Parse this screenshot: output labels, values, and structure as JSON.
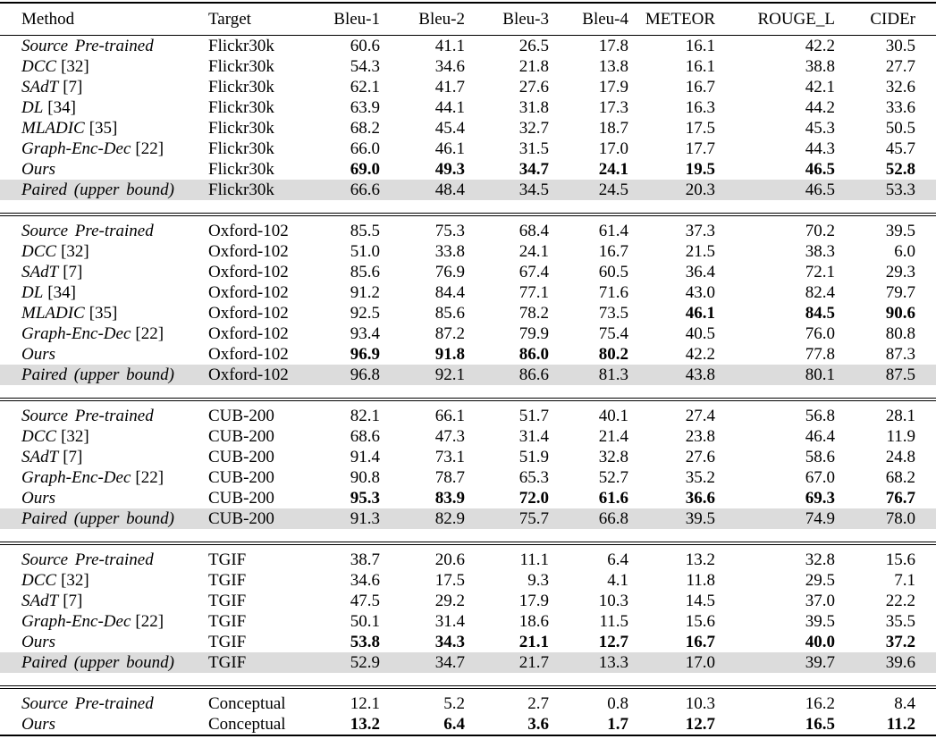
{
  "table": {
    "columns": [
      "Method",
      "Target",
      "Bleu-1",
      "Bleu-2",
      "Bleu-3",
      "Bleu-4",
      "METEOR",
      "ROUGE_L",
      "CIDEr"
    ],
    "shaded_row_color": "#dcdcdc",
    "blocks": [
      {
        "target_dataset": "Flickr30k",
        "rows": [
          {
            "method": "Source Pre-trained",
            "ref": "",
            "target": "Flickr30k",
            "values": [
              "60.6",
              "41.1",
              "26.5",
              "17.8",
              "16.1",
              "42.2",
              "30.5"
            ],
            "bold": [
              0,
              0,
              0,
              0,
              0,
              0,
              0
            ],
            "shaded": false
          },
          {
            "method": "DCC",
            "ref": "[32]",
            "target": "Flickr30k",
            "values": [
              "54.3",
              "34.6",
              "21.8",
              "13.8",
              "16.1",
              "38.8",
              "27.7"
            ],
            "bold": [
              0,
              0,
              0,
              0,
              0,
              0,
              0
            ],
            "shaded": false
          },
          {
            "method": "SAdT",
            "ref": "[7]",
            "target": "Flickr30k",
            "values": [
              "62.1",
              "41.7",
              "27.6",
              "17.9",
              "16.7",
              "42.1",
              "32.6"
            ],
            "bold": [
              0,
              0,
              0,
              0,
              0,
              0,
              0
            ],
            "shaded": false
          },
          {
            "method": "DL",
            "ref": "[34]",
            "target": "Flickr30k",
            "values": [
              "63.9",
              "44.1",
              "31.8",
              "17.3",
              "16.3",
              "44.2",
              "33.6"
            ],
            "bold": [
              0,
              0,
              0,
              0,
              0,
              0,
              0
            ],
            "shaded": false
          },
          {
            "method": "MLADIC",
            "ref": "[35]",
            "target": "Flickr30k",
            "values": [
              "68.2",
              "45.4",
              "32.7",
              "18.7",
              "17.5",
              "45.3",
              "50.5"
            ],
            "bold": [
              0,
              0,
              0,
              0,
              0,
              0,
              0
            ],
            "shaded": false
          },
          {
            "method": "Graph-Enc-Dec",
            "ref": "[22]",
            "target": "Flickr30k",
            "values": [
              "66.0",
              "46.1",
              "31.5",
              "17.0",
              "17.7",
              "44.3",
              "45.7"
            ],
            "bold": [
              0,
              0,
              0,
              0,
              0,
              0,
              0
            ],
            "shaded": false
          },
          {
            "method": "Ours",
            "ref": "",
            "target": "Flickr30k",
            "values": [
              "69.0",
              "49.3",
              "34.7",
              "24.1",
              "19.5",
              "46.5",
              "52.8"
            ],
            "bold": [
              1,
              1,
              1,
              1,
              1,
              1,
              1
            ],
            "shaded": false
          },
          {
            "method": "Paired (upper bound)",
            "ref": "",
            "target": "Flickr30k",
            "values": [
              "66.6",
              "48.4",
              "34.5",
              "24.5",
              "20.3",
              "46.5",
              "53.3"
            ],
            "bold": [
              0,
              0,
              0,
              0,
              0,
              0,
              0
            ],
            "shaded": true
          }
        ]
      },
      {
        "target_dataset": "Oxford-102",
        "rows": [
          {
            "method": "Source Pre-trained",
            "ref": "",
            "target": "Oxford-102",
            "values": [
              "85.5",
              "75.3",
              "68.4",
              "61.4",
              "37.3",
              "70.2",
              "39.5"
            ],
            "bold": [
              0,
              0,
              0,
              0,
              0,
              0,
              0
            ],
            "shaded": false
          },
          {
            "method": "DCC",
            "ref": "[32]",
            "target": "Oxford-102",
            "values": [
              "51.0",
              "33.8",
              "24.1",
              "16.7",
              "21.5",
              "38.3",
              "6.0"
            ],
            "bold": [
              0,
              0,
              0,
              0,
              0,
              0,
              0
            ],
            "shaded": false
          },
          {
            "method": "SAdT",
            "ref": "[7]",
            "target": "Oxford-102",
            "values": [
              "85.6",
              "76.9",
              "67.4",
              "60.5",
              "36.4",
              "72.1",
              "29.3"
            ],
            "bold": [
              0,
              0,
              0,
              0,
              0,
              0,
              0
            ],
            "shaded": false
          },
          {
            "method": "DL",
            "ref": "[34]",
            "target": "Oxford-102",
            "values": [
              "91.2",
              "84.4",
              "77.1",
              "71.6",
              "43.0",
              "82.4",
              "79.7"
            ],
            "bold": [
              0,
              0,
              0,
              0,
              0,
              0,
              0
            ],
            "shaded": false
          },
          {
            "method": "MLADIC",
            "ref": "[35]",
            "target": "Oxford-102",
            "values": [
              "92.5",
              "85.6",
              "78.2",
              "73.5",
              "46.1",
              "84.5",
              "90.6"
            ],
            "bold": [
              0,
              0,
              0,
              0,
              1,
              1,
              1
            ],
            "shaded": false
          },
          {
            "method": "Graph-Enc-Dec",
            "ref": "[22]",
            "target": "Oxford-102",
            "values": [
              "93.4",
              "87.2",
              "79.9",
              "75.4",
              "40.5",
              "76.0",
              "80.8"
            ],
            "bold": [
              0,
              0,
              0,
              0,
              0,
              0,
              0
            ],
            "shaded": false
          },
          {
            "method": "Ours",
            "ref": "",
            "target": "Oxford-102",
            "values": [
              "96.9",
              "91.8",
              "86.0",
              "80.2",
              "42.2",
              "77.8",
              "87.3"
            ],
            "bold": [
              1,
              1,
              1,
              1,
              0,
              0,
              0
            ],
            "shaded": false
          },
          {
            "method": "Paired (upper bound)",
            "ref": "",
            "target": "Oxford-102",
            "values": [
              "96.8",
              "92.1",
              "86.6",
              "81.3",
              "43.8",
              "80.1",
              "87.5"
            ],
            "bold": [
              0,
              0,
              0,
              0,
              0,
              0,
              0
            ],
            "shaded": true
          }
        ]
      },
      {
        "target_dataset": "CUB-200",
        "rows": [
          {
            "method": "Source Pre-trained",
            "ref": "",
            "target": "CUB-200",
            "values": [
              "82.1",
              "66.1",
              "51.7",
              "40.1",
              "27.4",
              "56.8",
              "28.1"
            ],
            "bold": [
              0,
              0,
              0,
              0,
              0,
              0,
              0
            ],
            "shaded": false
          },
          {
            "method": "DCC",
            "ref": "[32]",
            "target": "CUB-200",
            "values": [
              "68.6",
              "47.3",
              "31.4",
              "21.4",
              "23.8",
              "46.4",
              "11.9"
            ],
            "bold": [
              0,
              0,
              0,
              0,
              0,
              0,
              0
            ],
            "shaded": false
          },
          {
            "method": "SAdT",
            "ref": "[7]",
            "target": "CUB-200",
            "values": [
              "91.4",
              "73.1",
              "51.9",
              "32.8",
              "27.6",
              "58.6",
              "24.8"
            ],
            "bold": [
              0,
              0,
              0,
              0,
              0,
              0,
              0
            ],
            "shaded": false
          },
          {
            "method": "Graph-Enc-Dec",
            "ref": "[22]",
            "target": "CUB-200",
            "values": [
              "90.8",
              "78.7",
              "65.3",
              "52.7",
              "35.2",
              "67.0",
              "68.2"
            ],
            "bold": [
              0,
              0,
              0,
              0,
              0,
              0,
              0
            ],
            "shaded": false
          },
          {
            "method": "Ours",
            "ref": "",
            "target": "CUB-200",
            "values": [
              "95.3",
              "83.9",
              "72.0",
              "61.6",
              "36.6",
              "69.3",
              "76.7"
            ],
            "bold": [
              1,
              1,
              1,
              1,
              1,
              1,
              1
            ],
            "shaded": false
          },
          {
            "method": "Paired (upper bound)",
            "ref": "",
            "target": "CUB-200",
            "values": [
              "91.3",
              "82.9",
              "75.7",
              "66.8",
              "39.5",
              "74.9",
              "78.0"
            ],
            "bold": [
              0,
              0,
              0,
              0,
              0,
              0,
              0
            ],
            "shaded": true
          }
        ]
      },
      {
        "target_dataset": "TGIF",
        "rows": [
          {
            "method": "Source Pre-trained",
            "ref": "",
            "target": "TGIF",
            "values": [
              "38.7",
              "20.6",
              "11.1",
              "6.4",
              "13.2",
              "32.8",
              "15.6"
            ],
            "bold": [
              0,
              0,
              0,
              0,
              0,
              0,
              0
            ],
            "shaded": false
          },
          {
            "method": "DCC",
            "ref": "[32]",
            "target": "TGIF",
            "values": [
              "34.6",
              "17.5",
              "9.3",
              "4.1",
              "11.8",
              "29.5",
              "7.1"
            ],
            "bold": [
              0,
              0,
              0,
              0,
              0,
              0,
              0
            ],
            "shaded": false
          },
          {
            "method": "SAdT",
            "ref": "[7]",
            "target": "TGIF",
            "values": [
              "47.5",
              "29.2",
              "17.9",
              "10.3",
              "14.5",
              "37.0",
              "22.2"
            ],
            "bold": [
              0,
              0,
              0,
              0,
              0,
              0,
              0
            ],
            "shaded": false
          },
          {
            "method": "Graph-Enc-Dec",
            "ref": "[22]",
            "target": "TGIF",
            "values": [
              "50.1",
              "31.4",
              "18.6",
              "11.5",
              "15.6",
              "39.5",
              "35.5"
            ],
            "bold": [
              0,
              0,
              0,
              0,
              0,
              0,
              0
            ],
            "shaded": false
          },
          {
            "method": "Ours",
            "ref": "",
            "target": "TGIF",
            "values": [
              "53.8",
              "34.3",
              "21.1",
              "12.7",
              "16.7",
              "40.0",
              "37.2"
            ],
            "bold": [
              1,
              1,
              1,
              1,
              1,
              1,
              1
            ],
            "shaded": false
          },
          {
            "method": "Paired (upper bound)",
            "ref": "",
            "target": "TGIF",
            "values": [
              "52.9",
              "34.7",
              "21.7",
              "13.3",
              "17.0",
              "39.7",
              "39.6"
            ],
            "bold": [
              0,
              0,
              0,
              0,
              0,
              0,
              0
            ],
            "shaded": true
          }
        ]
      },
      {
        "target_dataset": "Conceptual",
        "rows": [
          {
            "method": "Source Pre-trained",
            "ref": "",
            "target": "Conceptual",
            "values": [
              "12.1",
              "5.2",
              "2.7",
              "0.8",
              "10.3",
              "16.2",
              "8.4"
            ],
            "bold": [
              0,
              0,
              0,
              0,
              0,
              0,
              0
            ],
            "shaded": false
          },
          {
            "method": "Ours",
            "ref": "",
            "target": "Conceptual",
            "values": [
              "13.2",
              "6.4",
              "3.6",
              "1.7",
              "12.7",
              "16.5",
              "11.2"
            ],
            "bold": [
              1,
              1,
              1,
              1,
              1,
              1,
              1
            ],
            "shaded": false
          }
        ]
      }
    ]
  }
}
